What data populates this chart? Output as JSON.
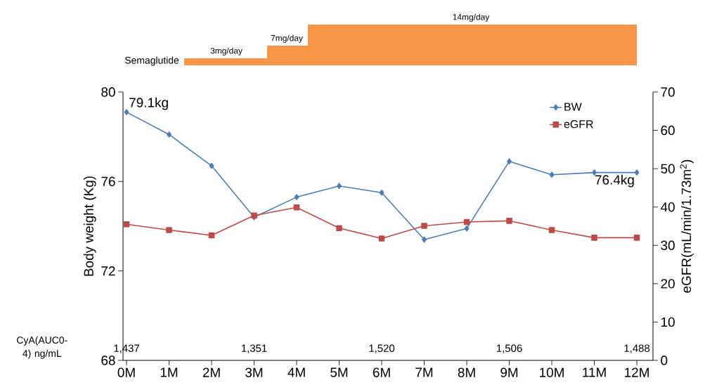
{
  "chart_data": [
    {
      "type": "other",
      "annotations": [
        "Semaglutide",
        "3mg/day",
        "7mg/day",
        "14mg/day"
      ]
    },
    {
      "type": "line",
      "categories": [
        "0M",
        "1M",
        "2M",
        "3M",
        "4M",
        "5M",
        "6M",
        "7M",
        "8M",
        "9M",
        "10M",
        "11M",
        "12M"
      ],
      "ylabel": "Body weight (Kg)",
      "y2label": "eGFR(mL/min/1.73m$^{2}$)",
      "ylim": [
        68,
        80
      ],
      "yticks": [
        68,
        72,
        76,
        80
      ],
      "y2lim": [
        0,
        70
      ],
      "y2ticks": [
        0,
        10,
        20,
        30,
        40,
        50,
        60,
        70
      ],
      "legend": "top right",
      "line_style": "solid",
      "series": [
        {
          "name": "BW",
          "color": "#4a7ebb",
          "marker": "diamond",
          "values": [
            79.1,
            78.1,
            76.7,
            74.4,
            75.3,
            75.8,
            75.5,
            73.4,
            73.9,
            76.9,
            76.3,
            76.4,
            76.4
          ]
        },
        {
          "name": "eGFR",
          "color": "#be4b48",
          "marker": "square",
          "axis": "y2",
          "values": [
            35.5,
            34.0,
            32.6,
            37.8,
            39.9,
            34.5,
            31.8,
            35.1,
            36.1,
            36.4,
            34.0,
            32.0,
            32.0
          ]
        }
      ],
      "annotations": [
        {
          "text": "79.1kg",
          "x": "0M",
          "y": 79.1
        },
        {
          "text": "76.4kg",
          "x": "12M",
          "y": 76.4
        },
        "CyA(AUC0-4) ng/mL",
        "1,437",
        "1,351",
        "1,520",
        "1,506",
        "1,488"
      ]
    }
  ]
}
